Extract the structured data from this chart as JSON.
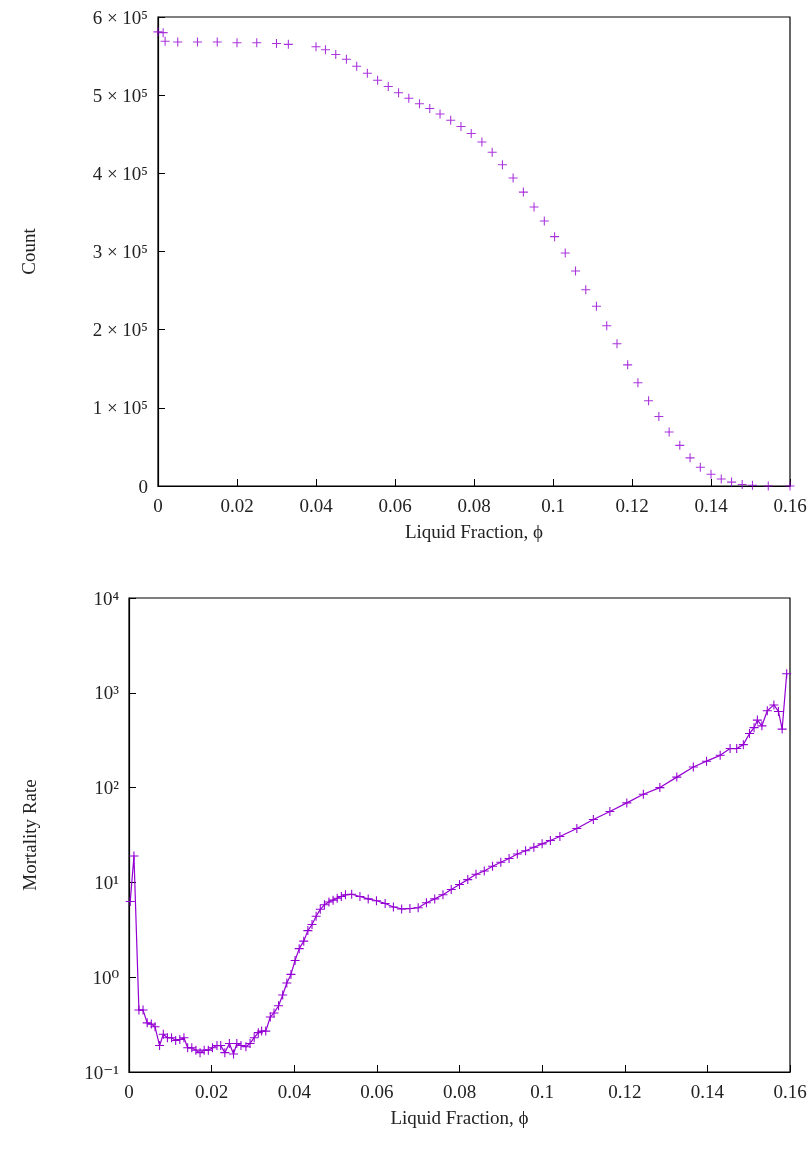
{
  "chart_data": [
    {
      "type": "scatter",
      "ylabel": "Count",
      "xlabel": "Liquid Fraction, ϕ",
      "marker": "cross",
      "x": [
        0,
        0.0013,
        0.0018,
        0.005,
        0.01,
        0.015,
        0.02,
        0.025,
        0.03,
        0.033,
        0.04,
        0.0424,
        0.045,
        0.0477,
        0.0503,
        0.053,
        0.0556,
        0.0583,
        0.0609,
        0.0635,
        0.0662,
        0.0688,
        0.0714,
        0.0741,
        0.0767,
        0.0793,
        0.082,
        0.0846,
        0.0872,
        0.0899,
        0.0925,
        0.0952,
        0.0978,
        0.1004,
        0.1031,
        0.1057,
        0.1083,
        0.111,
        0.1136,
        0.1162,
        0.1189,
        0.1215,
        0.1242,
        0.1268,
        0.1294,
        0.1321,
        0.1347,
        0.1373,
        0.14,
        0.1426,
        0.1452,
        0.1479,
        0.1505,
        0.1545,
        0.16
      ],
      "series": [
        {
          "color": "#9400d3",
          "values": [
            581000,
            580000,
            569000,
            568000,
            568000,
            568000,
            567000,
            567000,
            566000,
            565000,
            562000,
            558000,
            552000,
            546000,
            537000,
            528000,
            519000,
            511000,
            503000,
            496000,
            489000,
            483000,
            476000,
            468000,
            460000,
            451000,
            440000,
            427000,
            411000,
            394000,
            376000,
            357000,
            339000,
            319000,
            298000,
            275000,
            251000,
            230000,
            205000,
            182000,
            155000,
            132000,
            109000,
            89000,
            69000,
            52000,
            36000,
            24000,
            15000,
            9000,
            5000,
            2000,
            1000,
            0,
            0
          ]
        }
      ],
      "xlim": [
        0,
        0.16
      ],
      "xticks": [
        0,
        0.02,
        0.04,
        0.06,
        0.08,
        0.1,
        0.12,
        0.14,
        0.16
      ],
      "ylim": [
        0,
        600000
      ],
      "yticks": [
        0,
        {
          "value": 100000,
          "label": "1 × 10⁵"
        },
        {
          "value": 200000,
          "label": "2 × 10⁵"
        },
        {
          "value": 300000,
          "label": "3 × 10⁵"
        },
        {
          "value": 400000,
          "label": "4 × 10⁵"
        },
        {
          "value": 500000,
          "label": "5 × 10⁵"
        },
        {
          "value": 600000,
          "label": "6 × 10⁵"
        }
      ]
    },
    {
      "type": "line",
      "ylabel": "Mortality Rate",
      "xlabel": "Liquid Fraction, ϕ",
      "marker": "cross",
      "line_style": "solid",
      "log": "y",
      "x": [
        0.0003,
        0.0012,
        0.0024,
        0.0034,
        0.0044,
        0.0054,
        0.0063,
        0.0074,
        0.0083,
        0.0093,
        0.0103,
        0.0113,
        0.0123,
        0.0133,
        0.0142,
        0.0152,
        0.0162,
        0.0172,
        0.0182,
        0.0192,
        0.0202,
        0.0213,
        0.0222,
        0.0232,
        0.0243,
        0.0253,
        0.0261,
        0.0271,
        0.0283,
        0.0293,
        0.0303,
        0.0313,
        0.0321,
        0.0331,
        0.0342,
        0.0351,
        0.0362,
        0.0372,
        0.0382,
        0.0392,
        0.0402,
        0.0412,
        0.0423,
        0.0433,
        0.0443,
        0.0453,
        0.0463,
        0.0473,
        0.0484,
        0.0494,
        0.0504,
        0.0514,
        0.0524,
        0.0539,
        0.0559,
        0.0579,
        0.0599,
        0.062,
        0.064,
        0.066,
        0.068,
        0.07,
        0.072,
        0.074,
        0.076,
        0.078,
        0.08,
        0.082,
        0.084,
        0.086,
        0.088,
        0.09,
        0.092,
        0.094,
        0.096,
        0.098,
        0.1,
        0.102,
        0.1043,
        0.1084,
        0.1124,
        0.1164,
        0.1205,
        0.1245,
        0.1285,
        0.1326,
        0.1366,
        0.1398,
        0.1431,
        0.1455,
        0.1471,
        0.1487,
        0.1502,
        0.1513,
        0.1521,
        0.1532,
        0.1545,
        0.1561,
        0.1572,
        0.1581,
        0.1592
      ],
      "series": [
        {
          "color": "#9400d3",
          "values": [
            6.3,
            19,
            0.45,
            0.45,
            0.33,
            0.32,
            0.3,
            0.19,
            0.25,
            0.23,
            0.23,
            0.215,
            0.22,
            0.23,
            0.18,
            0.18,
            0.17,
            0.16,
            0.17,
            0.17,
            0.18,
            0.19,
            0.19,
            0.16,
            0.2,
            0.155,
            0.2,
            0.19,
            0.185,
            0.2,
            0.23,
            0.26,
            0.27,
            0.27,
            0.38,
            0.42,
            0.5,
            0.65,
            0.87,
            1.07,
            1.5,
            2,
            2.4,
            3.1,
            3.6,
            4.4,
            5.2,
            5.8,
            6.2,
            6.5,
            6.8,
            7.1,
            7.4,
            7.5,
            7.1,
            6.7,
            6.4,
            6,
            5.5,
            5.25,
            5.3,
            5.4,
            6.1,
            6.7,
            7.4,
            8.4,
            9.5,
            10.7,
            12.2,
            13.2,
            14.8,
            16.3,
            17.9,
            19.9,
            21.6,
            23.5,
            25.5,
            27.7,
            30.5,
            37,
            46,
            56,
            69,
            85,
            100,
            129,
            165,
            190,
            219,
            258,
            258,
            284,
            372,
            429,
            515,
            448,
            646,
            745,
            636,
            414,
            1590
          ]
        }
      ],
      "xlim": [
        0,
        0.16
      ],
      "xticks": [
        0,
        0.02,
        0.04,
        0.06,
        0.08,
        0.1,
        0.12,
        0.14,
        0.16
      ],
      "ylim": [
        0.1,
        10000
      ],
      "yticks": [
        {
          "value": 0.1,
          "label": "10⁻¹"
        },
        {
          "value": 1,
          "label": "10⁰"
        },
        {
          "value": 10,
          "label": "10¹"
        },
        {
          "value": 100,
          "label": "10²"
        },
        {
          "value": 1000,
          "label": "10³"
        },
        {
          "value": 10000,
          "label": "10⁴"
        }
      ]
    }
  ]
}
